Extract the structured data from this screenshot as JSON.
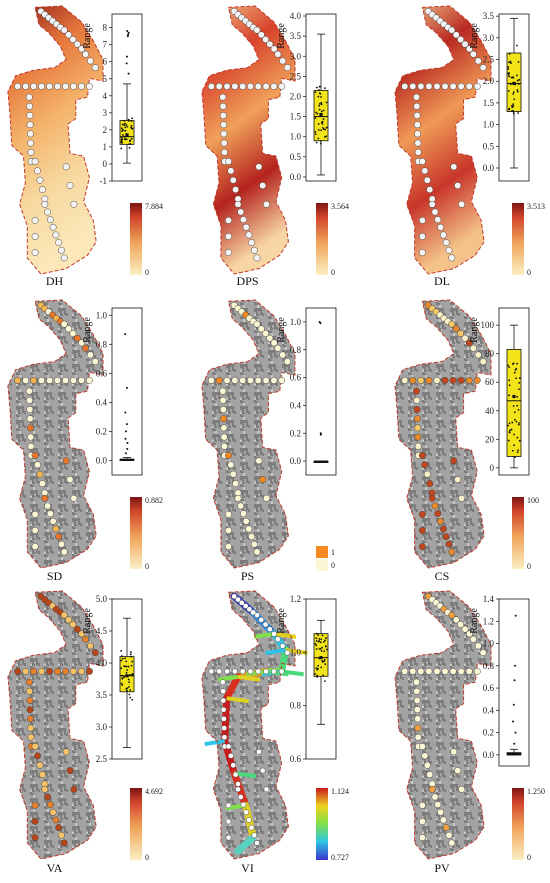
{
  "panels": [
    {
      "id": "DH",
      "title": "DH",
      "map": "surface",
      "palette": "ramp",
      "box": {
        "ylabel": "Range",
        "ylim": [
          -1,
          8.8
        ],
        "ticks": [
          -1,
          0,
          1,
          2,
          3,
          4,
          5,
          6,
          7,
          8
        ],
        "min": 0.05,
        "q1": 1.15,
        "median": 1.6,
        "mean": 1.7,
        "q3": 2.55,
        "max": 4.7,
        "filled": true,
        "outliers": [
          5.3,
          5.9,
          6.3,
          7.5,
          7.6,
          7.7,
          7.8
        ]
      },
      "colorbar": {
        "type": "gradient",
        "max": "7.884",
        "min": "0"
      }
    },
    {
      "id": "DPS",
      "title": "DPS",
      "map": "surface",
      "palette": "ramp",
      "box": {
        "ylabel": "Range",
        "ylim": [
          -0.1,
          4.05
        ],
        "ticks": [
          0.0,
          0.5,
          1.0,
          1.5,
          2.0,
          2.5,
          3.0,
          3.5,
          4.0
        ],
        "min": 0.05,
        "q1": 0.9,
        "median": 1.5,
        "mean": 1.55,
        "q3": 2.15,
        "max": 3.55,
        "filled": true,
        "outliers": []
      },
      "colorbar": {
        "type": "gradient",
        "max": "3.564",
        "min": "0"
      }
    },
    {
      "id": "DL",
      "title": "DL",
      "map": "surface",
      "palette": "ramp",
      "box": {
        "ylabel": "Range",
        "ylim": [
          -0.3,
          3.55
        ],
        "ticks": [
          0.0,
          0.5,
          1.0,
          1.5,
          2.0,
          2.5,
          3.0,
          3.5
        ],
        "min": 0.0,
        "q1": 1.3,
        "median": 1.95,
        "mean": 1.95,
        "q3": 2.65,
        "max": 3.45,
        "filled": true,
        "outliers": []
      },
      "colorbar": {
        "type": "gradient",
        "max": "3.513",
        "min": "0"
      }
    },
    {
      "id": "SD",
      "title": "SD",
      "map": "aerial",
      "palette": "sd",
      "box": {
        "ylabel": "Range",
        "ylim": [
          -0.1,
          1.05
        ],
        "ticks": [
          0.0,
          0.2,
          0.4,
          0.6,
          0.8,
          1.0
        ],
        "min": 0.0,
        "q1": 0.0,
        "median": 0.0,
        "mean": 0.02,
        "q3": 0.01,
        "max": 0.02,
        "filled": false,
        "outliers": [
          0.05,
          0.08,
          0.12,
          0.15,
          0.2,
          0.25,
          0.33,
          0.5,
          0.87
        ]
      },
      "colorbar": {
        "type": "gradient",
        "max": "0.882",
        "min": "0"
      }
    },
    {
      "id": "PS",
      "title": "PS",
      "map": "aerial",
      "palette": "ps",
      "box": {
        "ylabel": "Range",
        "ylim": [
          -0.1,
          1.1
        ],
        "ticks": [
          0.0,
          0.2,
          0.4,
          0.6,
          0.8,
          1.0
        ],
        "min": 0.0,
        "q1": 0.0,
        "median": 0.0,
        "mean": 0.0,
        "q3": 0.0,
        "max": 0.0,
        "filled": false,
        "outliers": [
          0.19,
          0.2,
          0.99,
          1.0
        ]
      },
      "colorbar": {
        "type": "categorical",
        "items": [
          {
            "label": "1",
            "color": "#f5891f"
          },
          {
            "label": "0",
            "color": "#fbf6d4"
          }
        ]
      }
    },
    {
      "id": "CS",
      "title": "CS",
      "map": "aerial",
      "palette": "cs",
      "box": {
        "ylabel": "Range",
        "ylim": [
          -5,
          112
        ],
        "ticks": [
          0,
          20,
          40,
          60,
          80,
          100
        ],
        "min": 0,
        "q1": 8,
        "median": 47,
        "mean": 50,
        "q3": 83,
        "max": 100,
        "filled": true,
        "outliers": []
      },
      "colorbar": {
        "type": "gradient",
        "max": "100",
        "min": "0"
      }
    },
    {
      "id": "VA",
      "title": "VA",
      "map": "aerial",
      "palette": "va",
      "box": {
        "ylabel": "Range",
        "ylim": [
          2.5,
          5.0
        ],
        "ticks": [
          2.5,
          3.0,
          3.5,
          4.0,
          4.5,
          5.0
        ],
        "min": 2.68,
        "q1": 3.55,
        "median": 3.8,
        "mean": 3.8,
        "q3": 4.1,
        "max": 4.7,
        "filled": true,
        "outliers": []
      },
      "colorbar": {
        "type": "gradient",
        "max": "4.692",
        "min": "0"
      }
    },
    {
      "id": "VI",
      "title": "VI",
      "map": "aerial",
      "palette": "vi",
      "box": {
        "ylabel": "Range",
        "ylim": [
          0.6,
          1.2
        ],
        "ticks": [
          0.6,
          0.8,
          1.0,
          1.2
        ],
        "min": 0.73,
        "q1": 0.91,
        "median": 0.98,
        "mean": 0.98,
        "q3": 1.07,
        "max": 1.12,
        "filled": true,
        "outliers": []
      },
      "colorbar": {
        "type": "spectral",
        "max": "1.124",
        "min": "0.727"
      }
    },
    {
      "id": "PV",
      "title": "PV",
      "map": "aerial",
      "palette": "pv",
      "box": {
        "ylabel": "Range",
        "ylim": [
          -0.1,
          1.4
        ],
        "ticks": [
          0.0,
          0.2,
          0.4,
          0.6,
          0.8,
          1.0,
          1.2,
          1.4
        ],
        "min": 0.0,
        "q1": 0.0,
        "median": 0.0,
        "mean": 0.02,
        "q3": 0.02,
        "max": 0.05,
        "filled": false,
        "outliers": [
          0.1,
          0.2,
          0.3,
          0.45,
          0.67,
          0.8,
          1.25
        ]
      },
      "colorbar": {
        "type": "gradient",
        "max": "1.250",
        "min": "0"
      }
    }
  ],
  "colors": {
    "boundary": "#c0392b",
    "box_fill": "#f2e418",
    "ramp_low": "#fbe7a8",
    "ramp_mid": "#ec8a3c",
    "ramp_high": "#8c1a1a",
    "point": "#f4f4f4",
    "aerial": "#9a9a9a"
  }
}
